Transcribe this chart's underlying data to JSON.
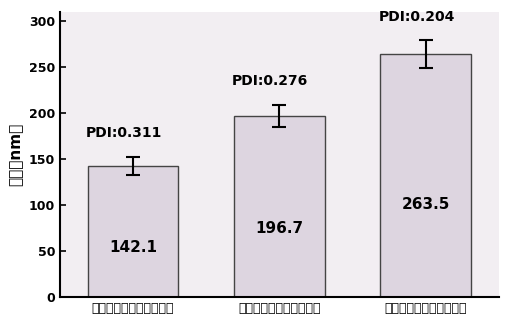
{
  "categories": [
    "单层肉桂精油纳米脂质体",
    "双层肉桂精油纳米脂质体",
    "多层肉桂精油纳米脂质体"
  ],
  "values": [
    142.1,
    196.7,
    263.5
  ],
  "errors": [
    10,
    12,
    15
  ],
  "pdi_labels": [
    "PDI:0.311",
    "PDI:0.276",
    "PDI:0.204"
  ],
  "bar_color": "#ddd5e0",
  "bar_edgecolor": "#444444",
  "ylabel": "粒径（nm）",
  "ylim": [
    0,
    310
  ],
  "yticks": [
    0,
    50,
    100,
    150,
    200,
    250,
    300
  ],
  "background_color": "#ffffff",
  "plot_bg_color": "#f2eef2",
  "value_fontsize": 11,
  "pdi_fontsize": 10,
  "ylabel_fontsize": 11,
  "xtick_fontsize": 9,
  "bar_width": 0.62
}
